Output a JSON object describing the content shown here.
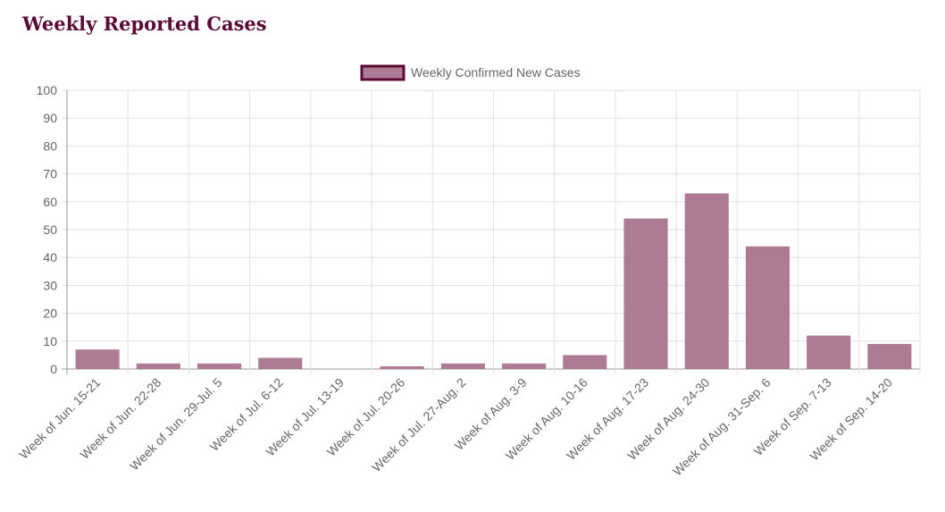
{
  "page": {
    "title": "Weekly Reported Cases"
  },
  "colors": {
    "bar_fill": "#ad7c94",
    "bar_border": "#5c0a36",
    "grid": "#e2e2e2",
    "axis": "#999999",
    "title": "#5c0a36"
  },
  "chart_data": {
    "type": "bar",
    "title": "",
    "xlabel": "",
    "ylabel": "",
    "ylim": [
      0,
      100
    ],
    "yticks": [
      0,
      10,
      20,
      30,
      40,
      50,
      60,
      70,
      80,
      90,
      100
    ],
    "grid": true,
    "legend_position": "top-center",
    "categories": [
      "Week of Jun. 15-21",
      "Week of Jun. 22-28",
      "Week of Jun. 29-Jul. 5",
      "Week of Jul. 6-12",
      "Week of Jul. 13-19",
      "Week of Jul. 20-26",
      "Week of Jul. 27-Aug. 2",
      "Week of Aug. 3-9",
      "Week of Aug. 10-16",
      "Week of Aug. 17-23",
      "Week of Aug. 24-30",
      "Week of Aug. 31-Sep. 6",
      "Week of Sep. 7-13",
      "Week of Sep. 14-20"
    ],
    "series": [
      {
        "name": "Weekly Confirmed New Cases",
        "values": [
          7,
          2,
          2,
          4,
          0,
          1,
          2,
          2,
          5,
          54,
          63,
          44,
          12,
          9
        ]
      }
    ]
  }
}
